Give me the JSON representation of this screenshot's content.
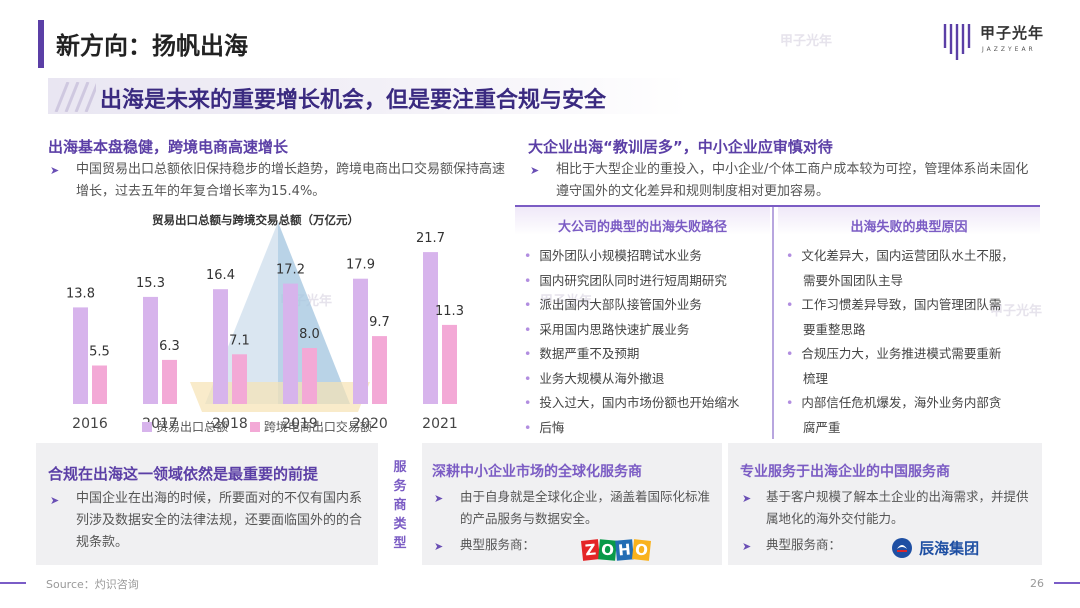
{
  "header": {
    "title": "新方向：扬帆出海",
    "logo_cn": "甲子光年",
    "logo_en": "JAZZYEAR",
    "watermark": "甲子光年"
  },
  "headline": "出海是未来的重要增长机会，但是要注重合规与安全",
  "left_section": {
    "title": "出海基本盘稳健，跨境电商高速增长",
    "bullet": "中国贸易出口总额依旧保持稳步的增长趋势，跨境电商出口交易额保持高速增长，过去五年的年复合增长率为15.4%。"
  },
  "chart_data": {
    "type": "bar",
    "title": "贸易出口总额与跨境交易总额（万亿元）",
    "categories": [
      "2016",
      "2017",
      "2018",
      "2019",
      "2020",
      "2021"
    ],
    "series": [
      {
        "name": "贸易出口总额",
        "values": [
          13.8,
          15.3,
          16.4,
          17.2,
          17.9,
          21.7
        ],
        "color": "#d7b4ec"
      },
      {
        "name": "跨境电商出口交易额",
        "values": [
          5.5,
          6.3,
          7.1,
          8.0,
          9.7,
          11.3
        ],
        "color": "#f3a9d6"
      }
    ],
    "ylim": [
      0,
      24
    ],
    "grid": false,
    "legend": "bottom"
  },
  "right_section": {
    "title": "大企业出海“教训居多”，中小企业应审慎对待",
    "bullet": "相比于大型企业的重投入，中小企业/个体工商户成本较为可控，管理体系尚未固化遵守国外的文化差异和规则制度相对更加容易。",
    "paths_title": "大公司的典型的出海失败路径",
    "paths": [
      "国外团队小规模招聘试水业务",
      "国内研究团队同时进行短周期研究",
      "派出国内大部队接管国外业务",
      "采用国内思路快速扩展业务",
      "数据严重不及预期",
      "业务大规模从海外撤退",
      "投入过大，国内市场份额也开始缩水",
      "后悔"
    ],
    "reasons_title": "出海失败的典型原因",
    "reasons": [
      [
        "文化差异大，国内运营团队水土不服，",
        "需要外国团队主导"
      ],
      [
        "工作习惯差异导致，国内管理团队需",
        "要重整思路"
      ],
      [
        "合规压力大，业务推进模式需要重新",
        "梳理"
      ],
      [
        "内部信任危机爆发，海外业务内部贪",
        "腐严重"
      ]
    ]
  },
  "bottom": {
    "compliance_title": "合规在出海这一领域依然是最重要的前提",
    "compliance_text": "中国企业在出海的时候，所要面对的不仅有国内系列涉及数据安全的法律法规，还要面临国外的的合规条款。",
    "service_tag": [
      "服",
      "务",
      "商",
      "类",
      "型"
    ],
    "global_title": "深耕中小企业市场的全球化服务商",
    "global_text": "由于自身就是全球化企业，涵盖着国际化标准的产品服务与数据安全。",
    "global_vendor_label": "典型服务商：",
    "global_vendor_logo": "ZOHO",
    "china_title": "专业服务于出海企业的中国服务商",
    "china_text": "基于客户规模了解本土企业的出海需求，并提供属地化的海外交付能力。",
    "china_vendor_label": "典型服务商：",
    "china_vendor_logo": "辰海集团"
  },
  "footer": {
    "source": "Source：灼识咨询",
    "page": "26"
  }
}
